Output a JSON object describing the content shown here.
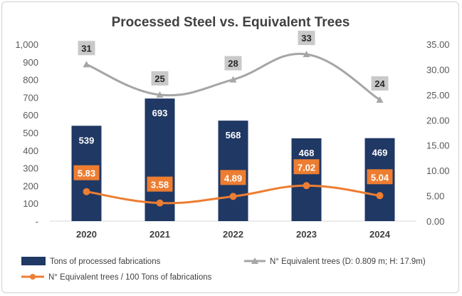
{
  "chart_data": {
    "type": "bar",
    "title": "Processed Steel vs. Equivalent Trees",
    "categories": [
      "2020",
      "2021",
      "2022",
      "2023",
      "2024"
    ],
    "left_axis": {
      "ylim": [
        0,
        1000
      ],
      "ticks": [
        "-",
        "100",
        "200",
        "300",
        "400",
        "500",
        "600",
        "700",
        "800",
        "900",
        "1,000"
      ]
    },
    "right_axis": {
      "ylim": [
        0,
        35
      ],
      "ticks": [
        "0.00",
        "5.00",
        "10.00",
        "15.00",
        "20.00",
        "25.00",
        "30.00",
        "35.00"
      ]
    },
    "series": [
      {
        "name": "Tons of processed fabrications",
        "type": "bar",
        "axis": "left",
        "values": [
          539,
          693,
          568,
          468,
          469
        ],
        "labels": [
          "539",
          "693",
          "568",
          "468",
          "469"
        ]
      },
      {
        "name": "N° Equivalent trees (D: 0.809 m; H: 17.9m)",
        "type": "line",
        "axis": "right",
        "values": [
          31,
          25,
          28,
          33,
          24
        ],
        "labels": [
          "31",
          "25",
          "28",
          "33",
          "24"
        ]
      },
      {
        "name": "N° Equivalent trees / 100 Tons of fabrications",
        "type": "line",
        "axis": "right",
        "values": [
          5.83,
          3.58,
          4.89,
          7.02,
          5.04
        ],
        "labels": [
          "5.83",
          "3.58",
          "4.89",
          "7.02",
          "5.04"
        ]
      }
    ],
    "colors": {
      "bar": "#1f3864",
      "gray": "#a6a6a6",
      "orange": "#ed7d31",
      "label_gray": "#c9c9c9"
    },
    "grid": false,
    "legend_position": "bottom"
  }
}
